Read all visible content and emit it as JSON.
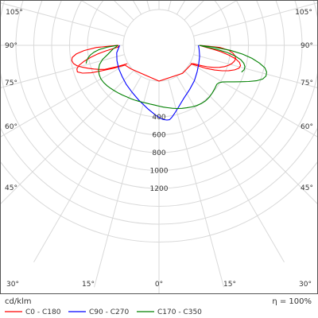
{
  "chart_data": {
    "type": "polar",
    "unit_label": "cd/klm",
    "efficiency_label": "η = 100%",
    "angle_ticks": [
      {
        "label": "105°",
        "angle": 105
      },
      {
        "label": "90°",
        "angle": 90
      },
      {
        "label": "75°",
        "angle": 75
      },
      {
        "label": "60°",
        "angle": 60
      },
      {
        "label": "45°",
        "angle": 45
      },
      {
        "label": "30°",
        "angle": 30
      },
      {
        "label": "15°",
        "angle": 15
      },
      {
        "label": "0°",
        "angle": 0
      }
    ],
    "radial_ticks": [
      {
        "label": "400",
        "value": 400
      },
      {
        "label": "600",
        "value": 600
      },
      {
        "label": "800",
        "value": 800
      },
      {
        "label": "1000",
        "value": 1000
      },
      {
        "label": "1200",
        "value": 1200
      }
    ],
    "radial_grid": [
      400,
      600,
      800,
      1000,
      1200,
      1400,
      1600,
      1800
    ],
    "series": [
      {
        "name": "C0 - C180",
        "color": "#ff0000",
        "points": [
          [
            -60,
            10
          ],
          [
            -63,
            120
          ],
          [
            -66,
            260
          ],
          [
            -68,
            320
          ],
          [
            -70,
            375
          ],
          [
            -72,
            430
          ],
          [
            -74,
            490
          ],
          [
            -76,
            545
          ],
          [
            -78,
            578
          ],
          [
            -80,
            590
          ],
          [
            -82,
            580
          ],
          [
            -84,
            530
          ],
          [
            -86,
            440
          ],
          [
            -88,
            300
          ],
          [
            -90,
            60
          ],
          [
            -88,
            50
          ],
          [
            -86,
            110
          ],
          [
            -84,
            200
          ],
          [
            -82,
            290
          ],
          [
            -80,
            375
          ],
          [
            -78,
            455
          ],
          [
            -76,
            520
          ],
          [
            -74,
            555
          ],
          [
            -72,
            560
          ],
          [
            -70,
            510
          ],
          [
            -68,
            420
          ],
          [
            -66,
            300
          ],
          [
            -63,
            160
          ],
          [
            -60,
            40
          ],
          [
            -50,
            10
          ],
          [
            0,
            0
          ],
          [
            40,
            10
          ],
          [
            60,
            20
          ],
          [
            62,
            90
          ],
          [
            64,
            190
          ],
          [
            66,
            280
          ],
          [
            68,
            360
          ],
          [
            70,
            430
          ],
          [
            72,
            490
          ],
          [
            74,
            530
          ],
          [
            76,
            540
          ],
          [
            78,
            520
          ],
          [
            80,
            470
          ],
          [
            82,
            390
          ],
          [
            84,
            300
          ],
          [
            86,
            200
          ],
          [
            88,
            110
          ],
          [
            90,
            50
          ],
          [
            88,
            280
          ],
          [
            86,
            380
          ],
          [
            84,
            430
          ],
          [
            82,
            460
          ],
          [
            80,
            470
          ],
          [
            78,
            460
          ],
          [
            76,
            440
          ],
          [
            74,
            410
          ],
          [
            72,
            370
          ],
          [
            70,
            320
          ],
          [
            68,
            260
          ],
          [
            66,
            190
          ],
          [
            64,
            110
          ],
          [
            62,
            40
          ],
          [
            60,
            10
          ]
        ]
      },
      {
        "name": "C90 - C270",
        "color": "#0000ff",
        "points": [
          [
            -90,
            40
          ],
          [
            -80,
            80
          ],
          [
            -70,
            100
          ],
          [
            -60,
            120
          ],
          [
            -50,
            140
          ],
          [
            -40,
            170
          ],
          [
            -30,
            205
          ],
          [
            -20,
            255
          ],
          [
            -10,
            320
          ],
          [
            -3,
            380
          ],
          [
            0,
            405
          ],
          [
            3,
            430
          ],
          [
            6,
            440
          ],
          [
            8,
            440
          ],
          [
            10,
            420
          ],
          [
            13,
            380
          ],
          [
            18,
            320
          ],
          [
            25,
            255
          ],
          [
            35,
            200
          ],
          [
            45,
            160
          ],
          [
            55,
            120
          ],
          [
            65,
            90
          ],
          [
            75,
            70
          ],
          [
            85,
            50
          ],
          [
            90,
            40
          ]
        ]
      },
      {
        "name": "C170 - C350",
        "color": "#008000",
        "points": [
          [
            -76,
            440
          ],
          [
            -78,
            425
          ],
          [
            -80,
            405
          ],
          [
            -82,
            375
          ],
          [
            -84,
            330
          ],
          [
            -86,
            270
          ],
          [
            -88,
            180
          ],
          [
            -90,
            60
          ],
          [
            -85,
            120
          ],
          [
            -80,
            180
          ],
          [
            -76,
            250
          ],
          [
            -72,
            300
          ],
          [
            -68,
            330
          ],
          [
            -64,
            345
          ],
          [
            -60,
            350
          ],
          [
            -56,
            345
          ],
          [
            -52,
            335
          ],
          [
            -48,
            322
          ],
          [
            -44,
            310
          ],
          [
            -40,
            300
          ],
          [
            -36,
            290
          ],
          [
            -32,
            280
          ],
          [
            -28,
            275
          ],
          [
            -24,
            270
          ],
          [
            -20,
            265
          ],
          [
            -16,
            262
          ],
          [
            -12,
            262
          ],
          [
            -8,
            265
          ],
          [
            -4,
            270
          ],
          [
            0,
            280
          ],
          [
            4,
            292
          ],
          [
            8,
            305
          ],
          [
            12,
            320
          ],
          [
            16,
            335
          ],
          [
            20,
            350
          ],
          [
            24,
            365
          ],
          [
            28,
            380
          ],
          [
            32,
            395
          ],
          [
            36,
            405
          ],
          [
            40,
            410
          ],
          [
            44,
            408
          ],
          [
            48,
            400
          ],
          [
            52,
            390
          ],
          [
            56,
            380
          ],
          [
            58,
            390
          ],
          [
            60,
            420
          ],
          [
            62,
            470
          ],
          [
            64,
            530
          ],
          [
            66,
            600
          ],
          [
            68,
            680
          ],
          [
            70,
            760
          ],
          [
            72,
            820
          ],
          [
            74,
            845
          ],
          [
            76,
            840
          ],
          [
            78,
            810
          ],
          [
            80,
            740
          ],
          [
            82,
            650
          ],
          [
            84,
            540
          ],
          [
            86,
            400
          ],
          [
            88,
            220
          ],
          [
            90,
            50
          ],
          [
            88,
            120
          ],
          [
            86,
            250
          ],
          [
            84,
            370
          ],
          [
            82,
            460
          ],
          [
            80,
            530
          ],
          [
            78,
            570
          ],
          [
            76,
            590
          ],
          [
            74,
            590
          ],
          [
            72,
            570
          ]
        ]
      }
    ]
  }
}
